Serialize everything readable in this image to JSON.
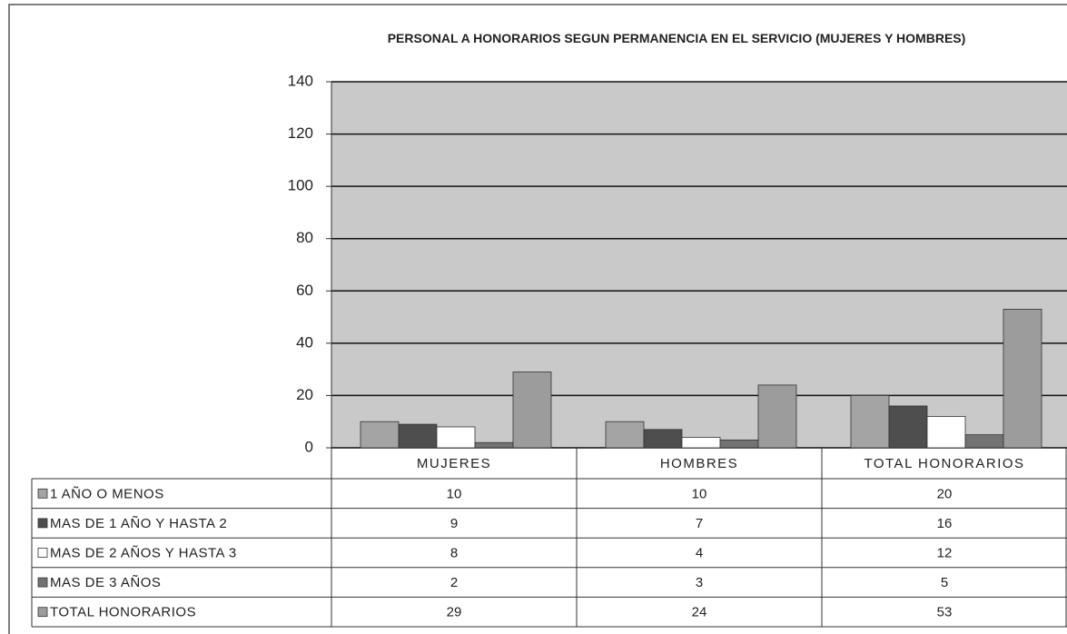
{
  "chart_data": {
    "type": "bar",
    "title": "PERSONAL A HONORARIOS SEGUN PERMANENCIA EN EL SERVICIO (MUJERES Y HOMBRES)",
    "categories": [
      "MUJERES",
      "HOMBRES",
      "TOTAL HONORARIOS"
    ],
    "series": [
      {
        "name": "1 AÑO O MENOS",
        "color": "#a4a4a4",
        "values": [
          10,
          10,
          20
        ]
      },
      {
        "name": "MAS DE 1 AÑO Y HASTA 2",
        "color": "#4e4e4e",
        "values": [
          9,
          7,
          16
        ]
      },
      {
        "name": "MAS DE 2 AÑOS Y HASTA 3",
        "color": "#ffffff",
        "values": [
          8,
          4,
          12
        ]
      },
      {
        "name": "MAS DE 3 AÑOS",
        "color": "#737373",
        "values": [
          2,
          3,
          5
        ]
      },
      {
        "name": "TOTAL HONORARIOS",
        "color": "#9c9c9c",
        "values": [
          29,
          24,
          53
        ]
      }
    ],
    "ylim": [
      0,
      140
    ],
    "yticks": [
      0,
      20,
      40,
      60,
      80,
      100,
      120,
      140
    ],
    "grid": true
  }
}
